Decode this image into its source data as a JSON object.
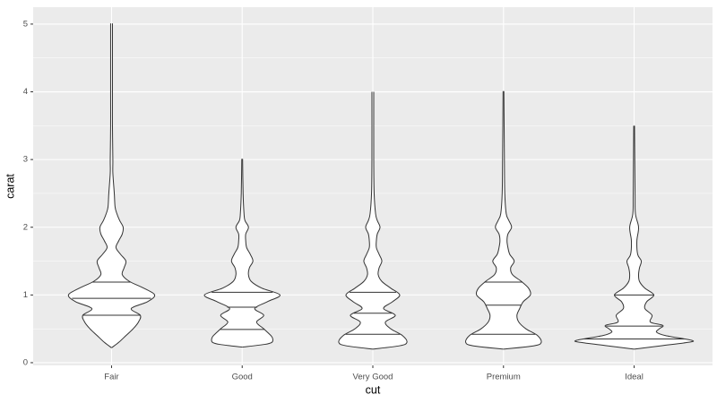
{
  "chart_data": {
    "type": "violin",
    "x_label": "cut",
    "y_label": "carat",
    "categories": [
      "Fair",
      "Good",
      "Very Good",
      "Premium",
      "Ideal"
    ],
    "ylim": [
      -0.04,
      5.25
    ],
    "yticks": [
      0,
      1,
      2,
      3,
      4,
      5
    ],
    "grid": true,
    "fill": "#ffffff",
    "line_color": "#333333",
    "violins": [
      {
        "y": [
          0.22,
          0.3,
          0.4,
          0.5,
          0.6,
          0.7,
          0.8,
          0.9,
          1.0,
          1.1,
          1.2,
          1.3,
          1.4,
          1.5,
          1.6,
          1.7,
          1.8,
          1.9,
          2.0,
          2.1,
          2.2,
          2.3,
          2.5,
          2.8,
          3.0,
          3.5,
          4.0,
          5.01
        ],
        "halfwidth": [
          0,
          0.055,
          0.11,
          0.165,
          0.206,
          0.22,
          0.151,
          0.275,
          0.33,
          0.247,
          0.137,
          0.082,
          0.096,
          0.11,
          0.069,
          0.034,
          0.055,
          0.082,
          0.089,
          0.062,
          0.041,
          0.027,
          0.021,
          0.01,
          0.01,
          0.007,
          0.007,
          0.007
        ],
        "quantiles": [
          0.7,
          0.95,
          1.19
        ]
      },
      {
        "y": [
          0.23,
          0.27,
          0.3,
          0.35,
          0.4,
          0.5,
          0.6,
          0.7,
          0.8,
          0.9,
          1.0,
          1.1,
          1.2,
          1.3,
          1.4,
          1.5,
          1.6,
          1.7,
          1.8,
          1.9,
          2.0,
          2.1,
          2.2,
          2.5,
          3.01
        ],
        "halfwidth": [
          0,
          0.172,
          0.227,
          0.234,
          0.22,
          0.165,
          0.11,
          0.165,
          0.096,
          0.192,
          0.289,
          0.151,
          0.069,
          0.048,
          0.055,
          0.082,
          0.062,
          0.034,
          0.027,
          0.027,
          0.048,
          0.021,
          0.014,
          0.007,
          0.003
        ],
        "quantiles": [
          0.49,
          0.82,
          1.04
        ]
      },
      {
        "y": [
          0.2,
          0.25,
          0.3,
          0.4,
          0.5,
          0.6,
          0.7,
          0.8,
          0.9,
          1.0,
          1.1,
          1.2,
          1.3,
          1.4,
          1.5,
          1.6,
          1.7,
          1.8,
          1.9,
          2.0,
          2.1,
          2.2,
          2.5,
          3.0,
          4.0
        ],
        "halfwidth": [
          0,
          0.206,
          0.261,
          0.227,
          0.137,
          0.096,
          0.172,
          0.082,
          0.151,
          0.206,
          0.137,
          0.069,
          0.041,
          0.048,
          0.069,
          0.048,
          0.027,
          0.027,
          0.034,
          0.055,
          0.034,
          0.021,
          0.01,
          0.007,
          0.007
        ],
        "quantiles": [
          0.42,
          0.73,
          1.04
        ]
      },
      {
        "y": [
          0.2,
          0.25,
          0.3,
          0.4,
          0.5,
          0.6,
          0.7,
          0.8,
          0.9,
          1.0,
          1.1,
          1.2,
          1.3,
          1.4,
          1.5,
          1.6,
          1.7,
          1.8,
          1.9,
          2.0,
          2.1,
          2.2,
          2.5,
          3.0,
          4.01
        ],
        "halfwidth": [
          0,
          0.234,
          0.289,
          0.261,
          0.172,
          0.117,
          0.103,
          0.124,
          0.151,
          0.206,
          0.192,
          0.137,
          0.069,
          0.055,
          0.082,
          0.048,
          0.034,
          0.027,
          0.034,
          0.062,
          0.041,
          0.021,
          0.01,
          0.007,
          0.003
        ],
        "quantiles": [
          0.42,
          0.85,
          1.19
        ]
      },
      {
        "y": [
          0.2,
          0.25,
          0.3,
          0.33,
          0.4,
          0.45,
          0.5,
          0.55,
          0.6,
          0.7,
          0.8,
          0.9,
          1.0,
          1.1,
          1.2,
          1.3,
          1.4,
          1.5,
          1.6,
          1.8,
          2.0,
          2.2,
          2.5,
          3.5
        ],
        "halfwidth": [
          0,
          0.206,
          0.412,
          0.44,
          0.241,
          0.172,
          0.192,
          0.22,
          0.124,
          0.137,
          0.082,
          0.096,
          0.151,
          0.082,
          0.041,
          0.034,
          0.041,
          0.055,
          0.027,
          0.021,
          0.034,
          0.01,
          0.007,
          0.003
        ],
        "quantiles": [
          0.35,
          0.54,
          1.0
        ]
      }
    ]
  }
}
